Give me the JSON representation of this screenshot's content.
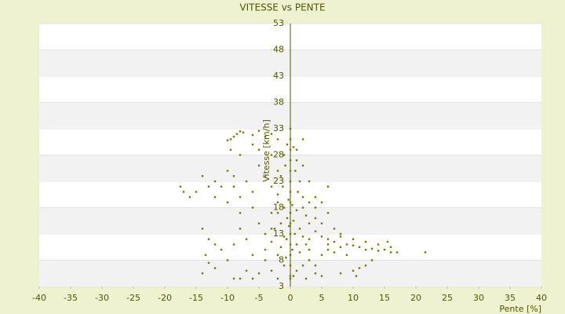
{
  "chart_data": {
    "type": "scatter",
    "title": "VITESSE vs PENTE",
    "x_label": "Pente [%]",
    "y_label": "Vitesse [km/h]",
    "color": "#7a7a00",
    "xlim": [
      -40,
      40
    ],
    "ylim": [
      3,
      53
    ],
    "xticks": [
      -40,
      -35,
      -30,
      -25,
      -20,
      -15,
      -10,
      -5,
      0,
      5,
      10,
      15,
      20,
      25,
      30,
      35,
      40
    ],
    "yticks": [
      3,
      8,
      13,
      18,
      23,
      28,
      33,
      38,
      43,
      48,
      53
    ],
    "x": [
      -9,
      -8.5,
      -8,
      -9.5,
      -7.5,
      -6,
      -5,
      -4,
      -3,
      -2,
      -10,
      0,
      0,
      0,
      0,
      0,
      0,
      0,
      0,
      0,
      0,
      0,
      0,
      0,
      0,
      0,
      0,
      -0.5,
      0.5,
      -1,
      1,
      -0.8,
      0.8,
      -1.5,
      1.5,
      -1.2,
      1.2,
      -2,
      2,
      -0.3,
      0.3,
      -1,
      1,
      -2,
      2.5,
      -0.5,
      0.5,
      -1.5,
      3,
      -0.2,
      1.5,
      -2.5,
      4,
      0.7,
      -1,
      2,
      5,
      -0.6,
      3,
      -3,
      1,
      6,
      -1.5,
      2.5,
      0.3,
      -2,
      1.5,
      -0.7,
      3,
      -4,
      -1,
      2,
      -3,
      1,
      -5,
      4,
      0.5,
      -2,
      2.5,
      -6,
      -8,
      -9,
      5,
      6,
      7,
      8,
      9,
      10,
      11,
      12,
      13,
      14,
      15,
      16,
      17,
      21.5,
      8,
      10,
      12,
      14,
      15.5,
      16,
      7,
      9,
      6,
      13,
      12,
      10,
      8,
      11,
      10.5,
      -17.5,
      -17,
      -15,
      -13,
      -12,
      -11,
      -10,
      -9,
      -8,
      -7,
      -6,
      -5,
      -4,
      -3,
      -12,
      -10,
      -8,
      -6,
      -5,
      -4,
      -3,
      -2,
      -14,
      -12,
      -10,
      -9,
      -7,
      -6,
      -12,
      -13,
      -14,
      -13.5,
      -11,
      -8,
      -7,
      -4,
      -3,
      -2,
      -3,
      -5,
      -8,
      -6,
      -9.5,
      -13,
      -16,
      -9,
      -14,
      2,
      3,
      4,
      6,
      4,
      5,
      3,
      2,
      1,
      2,
      5,
      6,
      7,
      8,
      4,
      3,
      5,
      4
    ],
    "values": [
      31.5,
      32,
      32.5,
      31,
      32.3,
      31.8,
      32.6,
      31.5,
      32,
      31,
      30.8,
      33,
      31,
      29,
      27,
      25,
      23,
      21,
      19,
      17,
      15,
      13,
      11,
      9,
      7,
      5,
      4.5,
      30,
      29.5,
      28,
      27,
      26,
      25,
      24,
      23,
      22,
      21,
      20.5,
      20,
      19.5,
      18.5,
      18,
      17.5,
      17,
      16.5,
      16,
      15.5,
      15,
      15,
      14.5,
      14,
      14,
      13.5,
      13,
      12.5,
      12.5,
      12.5,
      12,
      12,
      11.5,
      11,
      12,
      10.5,
      11,
      10,
      9,
      9.5,
      8.5,
      8,
      8,
      7,
      7,
      6,
      6,
      5.5,
      5.5,
      5,
      4.5,
      4.5,
      4.5,
      4.5,
      4.5,
      5,
      11,
      11.5,
      10.5,
      11,
      10.8,
      10.5,
      10,
      10.2,
      9.8,
      10,
      9.5,
      9.5,
      9.5,
      12.5,
      12,
      11.5,
      11,
      11.5,
      10.5,
      9.5,
      9,
      10,
      8,
      7,
      6,
      5.5,
      6.5,
      5,
      22,
      21,
      21,
      22,
      23,
      22,
      25,
      24,
      20,
      23,
      21,
      26,
      24,
      22,
      20,
      19,
      17,
      18,
      15,
      13,
      17,
      19,
      14,
      11,
      8,
      11,
      12,
      9,
      6.5,
      7.5,
      5.5,
      9,
      10,
      14,
      6,
      10,
      14,
      25,
      28,
      29,
      28,
      30,
      29,
      12,
      20,
      22,
      24,
      18,
      19,
      20,
      22,
      16,
      15,
      23,
      26,
      29,
      31,
      19,
      17,
      14,
      13,
      18,
      10,
      9,
      7
    ]
  }
}
